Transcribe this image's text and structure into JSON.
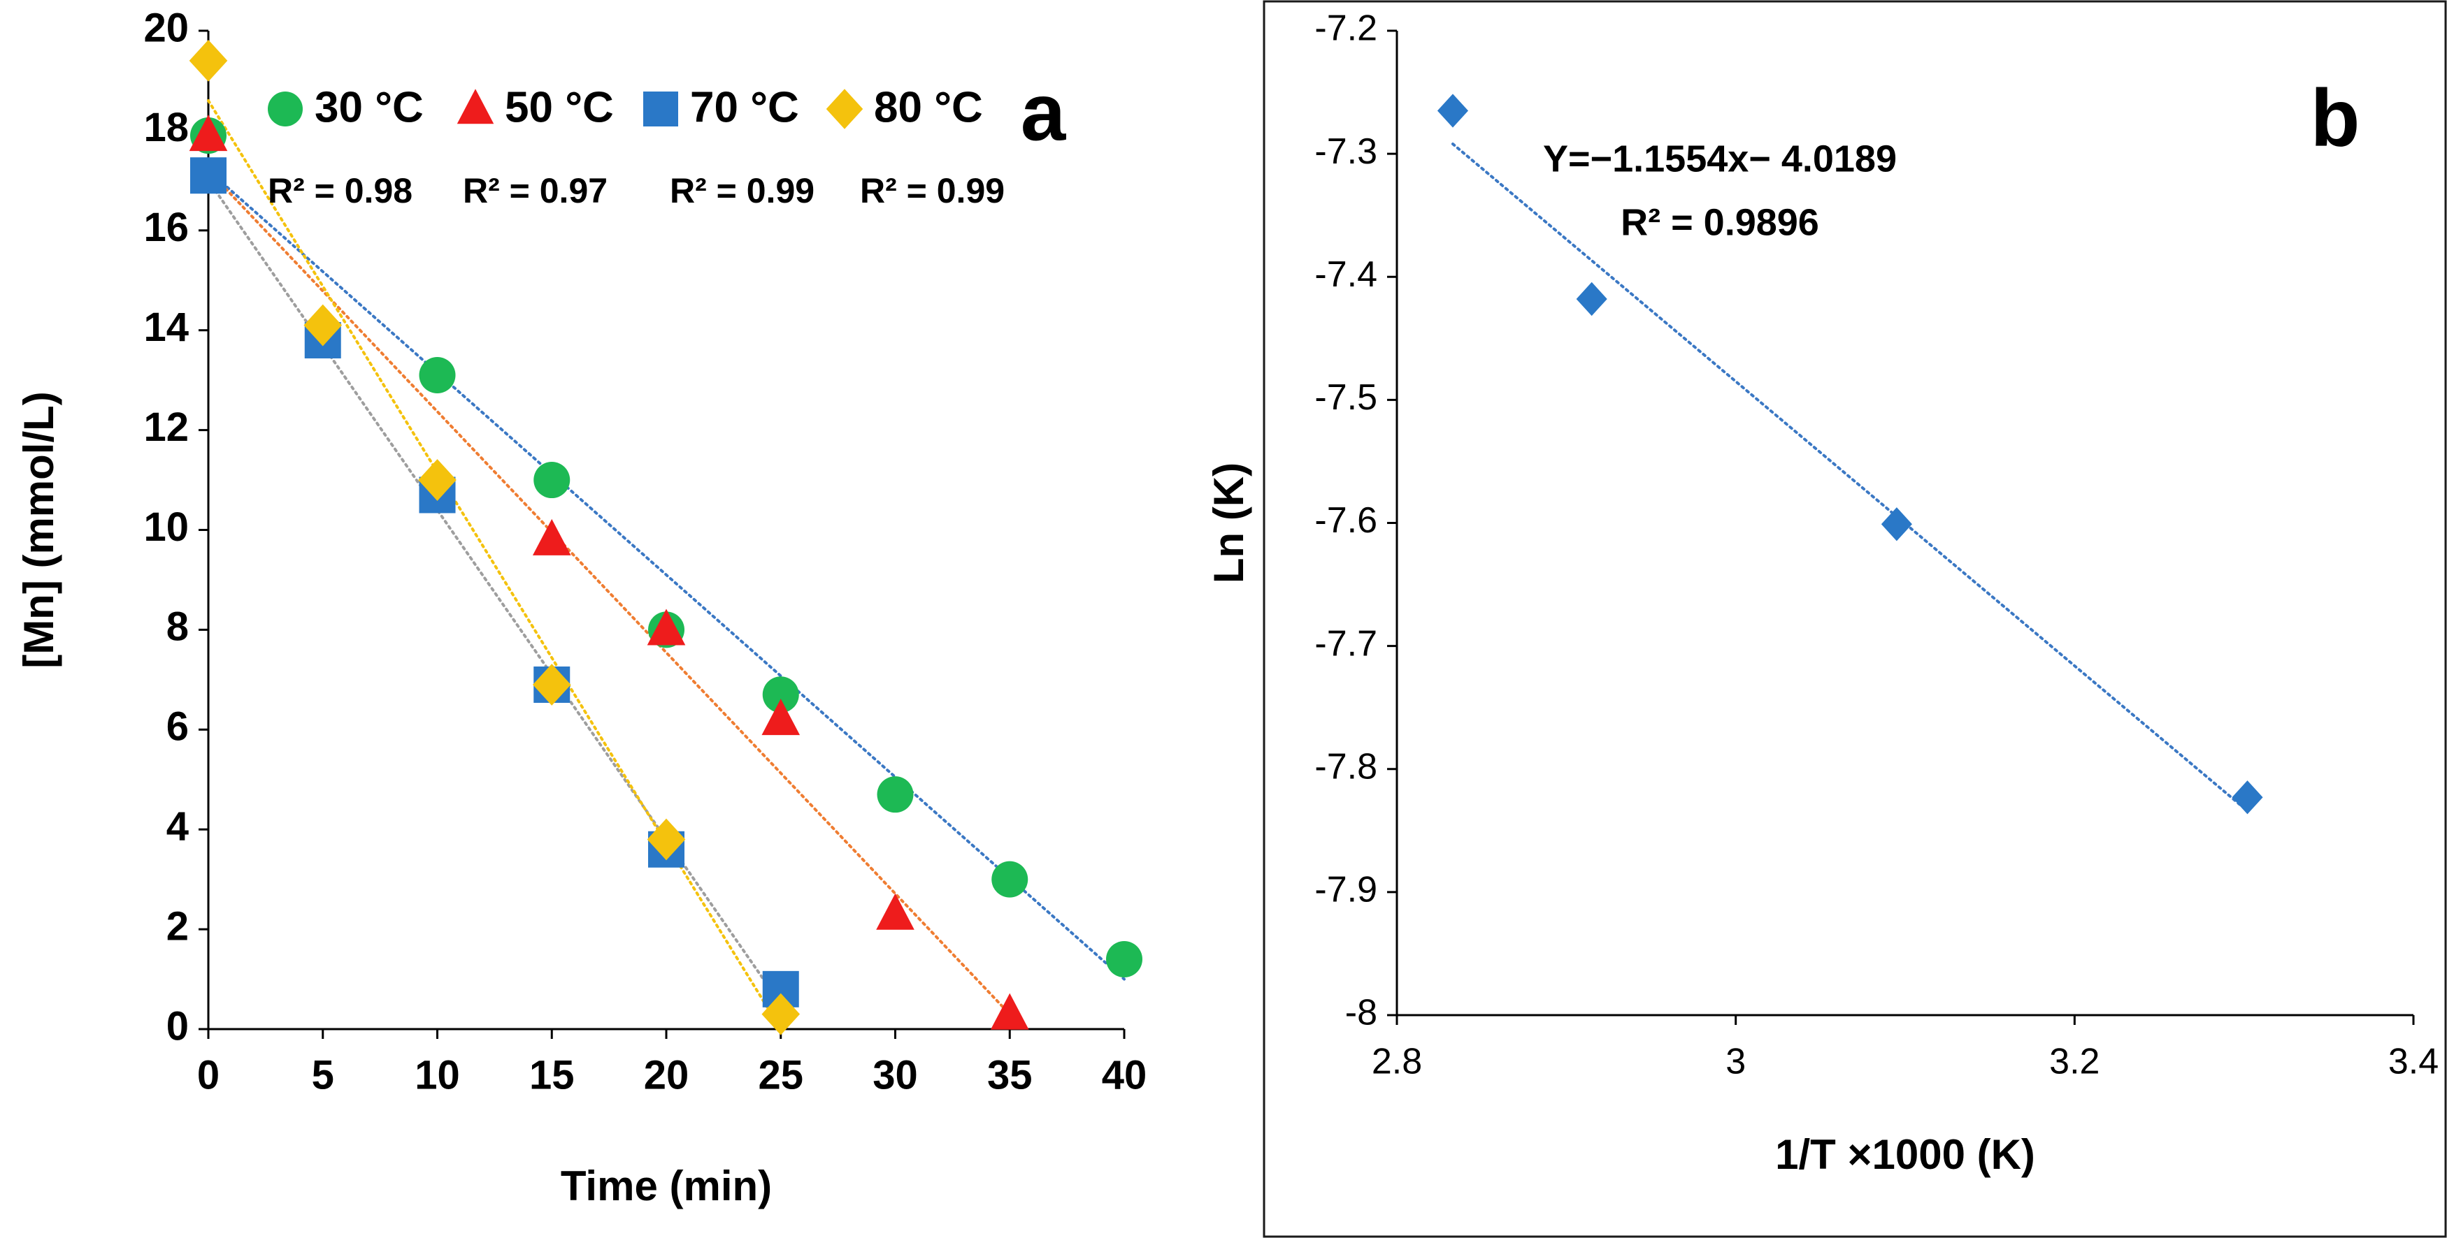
{
  "chart_data": [
    {
      "panel": "a",
      "type": "scatter",
      "xlabel": "Time (min)",
      "ylabel": "[Mn] (mmol/L)",
      "xlim": [
        0,
        40
      ],
      "ylim": [
        0,
        20
      ],
      "xticks": [
        0,
        5,
        10,
        15,
        20,
        25,
        30,
        35,
        40
      ],
      "yticks": [
        0,
        2,
        4,
        6,
        8,
        10,
        12,
        14,
        16,
        18,
        20
      ],
      "grid": false,
      "legend_position": "top",
      "series": [
        {
          "name": "30 °C",
          "marker": "circle",
          "color": "#1db954",
          "x": [
            0,
            10,
            15,
            20,
            25,
            30,
            35,
            40
          ],
          "y": [
            17.9,
            13.1,
            11.0,
            8.0,
            6.7,
            4.7,
            3.0,
            1.4
          ],
          "trend": {
            "x": [
              0,
              40
            ],
            "y": [
              17.2,
              1.0
            ],
            "color": "#3b78c4"
          },
          "r2": "R² = 0.98"
        },
        {
          "name": "50 °C",
          "marker": "triangle",
          "color": "#ee1c1c",
          "x": [
            0,
            15,
            20,
            25,
            30,
            35
          ],
          "y": [
            17.9,
            9.8,
            8.0,
            6.2,
            2.3,
            0.3
          ],
          "trend": {
            "x": [
              0,
              35
            ],
            "y": [
              17.2,
              0.3
            ],
            "color": "#ef7d32"
          },
          "r2": "R² = 0.97"
        },
        {
          "name": "70 °C",
          "marker": "square",
          "color": "#2a78c7",
          "x": [
            0,
            5,
            10,
            15,
            20,
            25
          ],
          "y": [
            17.1,
            13.8,
            10.7,
            6.9,
            3.6,
            0.8
          ],
          "trend": {
            "x": [
              0,
              25
            ],
            "y": [
              17.0,
              0.5
            ],
            "color": "#9e9e9e"
          },
          "r2": "R² = 0.99"
        },
        {
          "name": "80 °C",
          "marker": "diamond",
          "color": "#f4c20d",
          "x": [
            0,
            5,
            10,
            15,
            20,
            25
          ],
          "y": [
            19.4,
            14.1,
            11.0,
            6.9,
            3.8,
            0.3
          ],
          "trend": {
            "x": [
              0,
              25
            ],
            "y": [
              18.6,
              0.0
            ],
            "color": "#f4c20d"
          },
          "r2": "R² = 0.99"
        }
      ]
    },
    {
      "panel": "b",
      "type": "scatter",
      "xlabel": "1/T ×1000 (K)",
      "ylabel": "Ln (K)",
      "xlim": [
        2.8,
        3.4
      ],
      "ylim": [
        -8,
        -7.2
      ],
      "xticks": [
        2.8,
        3.0,
        3.2,
        3.4
      ],
      "xtick_labels": [
        "2.8",
        "3",
        "3.2",
        "3.4"
      ],
      "yticks": [
        -8,
        -7.9,
        -7.8,
        -7.7,
        -7.6,
        -7.5,
        -7.4,
        -7.3,
        -7.2
      ],
      "ytick_labels": [
        "-8",
        "-7.9",
        "-7.8",
        "-7.7",
        "-7.6",
        "-7.5",
        "-7.4",
        "-7.3",
        "-7.2"
      ],
      "grid": false,
      "series": [
        {
          "name": "Ln K",
          "marker": "diamond",
          "color": "#2a78c7",
          "x": [
            2.833,
            2.915,
            3.095,
            3.302
          ],
          "y": [
            -7.265,
            -7.418,
            -7.601,
            -7.823
          ],
          "trend": {
            "x": [
              2.833,
              3.302
            ],
            "y": [
              -7.292,
              -7.834
            ],
            "color": "#3b78c4"
          }
        }
      ],
      "annotations": {
        "equation": "Y=−1.1554x− 4.0189",
        "r2": "R² = 0.9896"
      }
    }
  ]
}
